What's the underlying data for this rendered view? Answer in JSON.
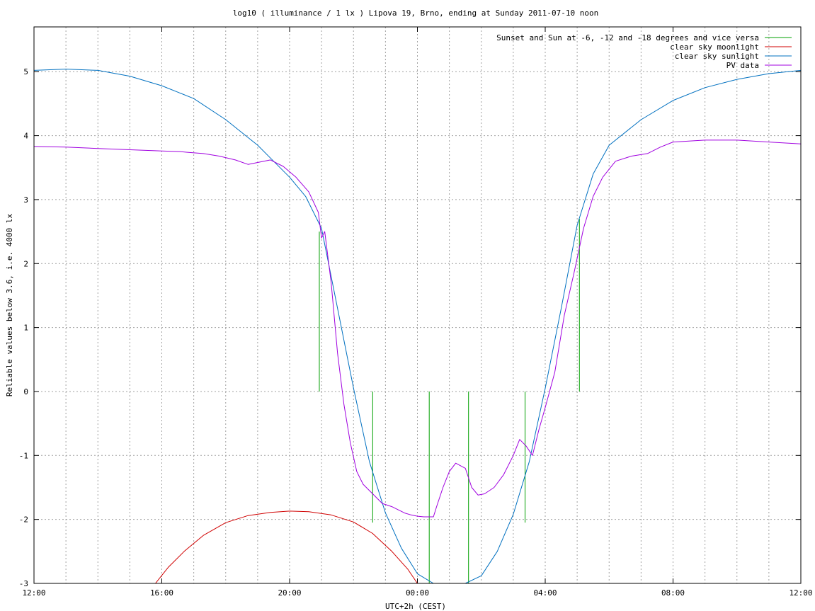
{
  "chart_data": {
    "type": "line",
    "title": "log10 ( illuminance / 1 lx ) Lipova 19, Brno, ending at Sunday 2011-07-10 noon",
    "xlabel": "UTC+2h (CEST)",
    "ylabel": "Reliable values below 3.6, i.e. 4000 lx",
    "xlim": [
      12,
      36
    ],
    "ylim": [
      -3,
      5.7
    ],
    "x_tick_labels": [
      "12:00",
      "16:00",
      "20:00",
      "00:00",
      "04:00",
      "08:00",
      "12:00"
    ],
    "y_tick_labels": [
      "-3",
      "-2",
      "-1",
      "0",
      "1",
      "2",
      "3",
      "4",
      "5"
    ],
    "grid": true,
    "legend_position": "top-right",
    "series": [
      {
        "name": "Sunset and Sun at -6, -12 and -18 degrees and vice versa",
        "color": "#00a000",
        "kind": "vlines",
        "x": [
          20.93,
          22.6,
          24.37,
          25.6,
          27.37,
          29.07
        ],
        "tops": [
          2.5,
          0,
          0,
          0,
          0,
          2.7
        ],
        "bottoms": [
          0,
          -2.05,
          -3,
          -3,
          -2.05,
          0
        ]
      },
      {
        "name": "clear sky moonlight",
        "color": "#d00000",
        "x": [
          15.8,
          16.2,
          16.7,
          17.3,
          18.0,
          18.7,
          19.4,
          20.0,
          20.6,
          21.3,
          22.0,
          22.6,
          23.2,
          23.7,
          24.0
        ],
        "y": [
          -3.0,
          -2.75,
          -2.5,
          -2.25,
          -2.05,
          -1.94,
          -1.89,
          -1.87,
          -1.88,
          -1.93,
          -2.04,
          -2.22,
          -2.5,
          -2.78,
          -3.0
        ]
      },
      {
        "name": "clear sky sunlight",
        "color": "#0070c0",
        "x": [
          12,
          13,
          14,
          15,
          16,
          17,
          18,
          19,
          19.5,
          20.0,
          20.5,
          21.0,
          21.5,
          22.0,
          22.5,
          23.0,
          23.5,
          24.0,
          24.5,
          25.0,
          25.5,
          26.0,
          26.5,
          27.0,
          27.5,
          28.0,
          28.5,
          29.0,
          29.5,
          30.0,
          31.0,
          32.0,
          33.0,
          34.0,
          35.0,
          36.0
        ],
        "y": [
          5.02,
          5.04,
          5.02,
          4.93,
          4.78,
          4.58,
          4.25,
          3.85,
          3.6,
          3.35,
          3.05,
          2.55,
          1.3,
          0.05,
          -1.1,
          -1.9,
          -2.45,
          -2.85,
          -3.0,
          -3.0,
          -3.0,
          -2.88,
          -2.5,
          -1.92,
          -1.1,
          0.05,
          1.3,
          2.6,
          3.4,
          3.85,
          4.25,
          4.55,
          4.75,
          4.88,
          4.97,
          5.02
        ]
      },
      {
        "name": "PV data",
        "color": "#a000e0",
        "x": [
          12,
          13,
          14,
          15,
          16,
          16.6,
          16.8,
          17.3,
          17.8,
          18.3,
          18.7,
          19.0,
          19.4,
          19.8,
          20.2,
          20.6,
          20.9,
          21.0,
          21.1,
          21.3,
          21.5,
          21.7,
          21.9,
          22.1,
          22.3,
          22.6,
          22.9,
          23.2,
          23.4,
          23.6,
          23.8,
          24.0,
          24.2,
          24.5,
          24.6,
          24.8,
          25.0,
          25.2,
          25.5,
          25.7,
          25.9,
          26.1,
          26.4,
          26.7,
          27.0,
          27.2,
          27.4,
          27.6,
          27.8,
          28.0,
          28.3,
          28.6,
          28.9,
          29.2,
          29.5,
          29.8,
          30.2,
          30.7,
          31.2,
          31.6,
          32.0,
          33.0,
          34.0,
          35.0,
          36.0
        ],
        "y": [
          3.83,
          3.82,
          3.8,
          3.78,
          3.76,
          3.75,
          3.74,
          3.72,
          3.68,
          3.62,
          3.55,
          3.58,
          3.62,
          3.52,
          3.35,
          3.12,
          2.8,
          2.4,
          2.5,
          1.7,
          0.6,
          -0.2,
          -0.8,
          -1.25,
          -1.45,
          -1.6,
          -1.75,
          -1.8,
          -1.85,
          -1.9,
          -1.93,
          -1.95,
          -1.96,
          -1.96,
          -1.8,
          -1.5,
          -1.25,
          -1.12,
          -1.2,
          -1.5,
          -1.62,
          -1.6,
          -1.5,
          -1.3,
          -1.0,
          -0.75,
          -0.85,
          -1.0,
          -0.6,
          -0.25,
          0.3,
          1.2,
          1.85,
          2.55,
          3.05,
          3.35,
          3.6,
          3.68,
          3.72,
          3.82,
          3.9,
          3.93,
          3.93,
          3.9,
          3.87
        ]
      }
    ]
  }
}
